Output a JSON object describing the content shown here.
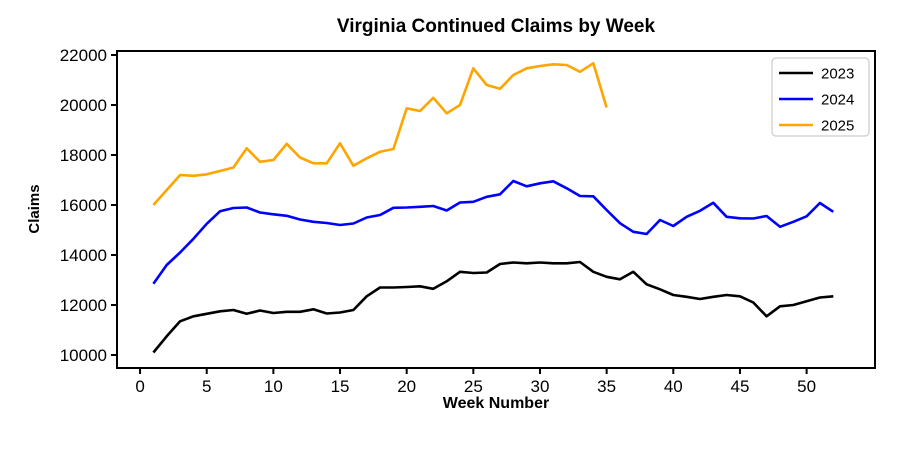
{
  "chart_data": {
    "type": "line",
    "title": "Virginia Continued Claims by Week",
    "xlabel": "Week Number",
    "ylabel": "Claims",
    "xlim": [
      -1.73,
      55.13
    ],
    "ylim": [
      9480,
      22160
    ],
    "xticks": [
      0,
      5,
      10,
      15,
      20,
      25,
      30,
      35,
      40,
      45,
      50
    ],
    "yticks": [
      10000,
      12000,
      14000,
      16000,
      18000,
      20000,
      22000
    ],
    "grid": false,
    "legend_position": "upper right",
    "axis_color": "#000000",
    "legend_border_color": "#cccccc",
    "x_weeks": [
      1,
      2,
      3,
      4,
      5,
      6,
      7,
      8,
      9,
      10,
      11,
      12,
      13,
      14,
      15,
      16,
      17,
      18,
      19,
      20,
      21,
      22,
      23,
      24,
      25,
      26,
      27,
      28,
      29,
      30,
      31,
      32,
      33,
      34,
      35,
      36,
      37,
      38,
      39,
      40,
      41,
      42,
      43,
      44,
      45,
      46,
      47,
      48,
      49,
      50,
      51,
      52
    ],
    "series": [
      {
        "name": "2023",
        "color": "#000000",
        "values": [
          10100,
          10750,
          11350,
          11550,
          11650,
          11750,
          11800,
          11650,
          11780,
          11680,
          11730,
          11730,
          11830,
          11660,
          11700,
          11800,
          12350,
          12700,
          12700,
          12720,
          12750,
          12650,
          12950,
          13330,
          13280,
          13300,
          13640,
          13700,
          13670,
          13700,
          13670,
          13670,
          13720,
          13330,
          13130,
          13030,
          13330,
          12830,
          12630,
          12400,
          12330,
          12240,
          12330,
          12400,
          12350,
          12100,
          11550,
          11950,
          12000,
          12150,
          12300,
          12350
        ]
      },
      {
        "name": "2024",
        "color": "#0000ff",
        "values": [
          12850,
          13600,
          14100,
          14650,
          15250,
          15750,
          15880,
          15900,
          15700,
          15630,
          15570,
          15420,
          15330,
          15280,
          15200,
          15260,
          15500,
          15600,
          15890,
          15900,
          15930,
          15960,
          15780,
          16100,
          16130,
          16330,
          16430,
          16960,
          16750,
          16870,
          16950,
          16670,
          16360,
          16350,
          15800,
          15270,
          14930,
          14840,
          15400,
          15160,
          15530,
          15770,
          16090,
          15530,
          15470,
          15460,
          15560,
          15130,
          15330,
          15550,
          16080,
          15730
        ]
      },
      {
        "name": "2025",
        "color": "#ffa500",
        "values": [
          16000,
          16600,
          17200,
          17170,
          17230,
          17360,
          17500,
          18270,
          17730,
          17800,
          18450,
          17900,
          17670,
          17670,
          18470,
          17570,
          17870,
          18130,
          18240,
          19870,
          19760,
          20290,
          19670,
          20000,
          21470,
          20800,
          20650,
          21200,
          21470,
          21560,
          21630,
          21600,
          21330,
          21670,
          19900
        ]
      }
    ]
  }
}
